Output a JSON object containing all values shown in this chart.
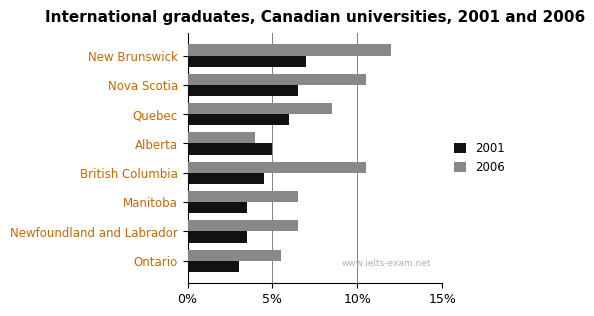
{
  "title": "International graduates, Canadian universities, 2001 and 2006",
  "categories": [
    "New Brunswick",
    "Nova Scotia",
    "Quebec",
    "Alberta",
    "British Columbia",
    "Manitoba",
    "Newfoundland and Labrador",
    "Ontario"
  ],
  "values_2001": [
    7.0,
    6.5,
    6.0,
    5.0,
    4.5,
    3.5,
    3.5,
    3.0
  ],
  "values_2006": [
    12.0,
    10.5,
    8.5,
    4.0,
    10.5,
    6.5,
    6.5,
    5.5
  ],
  "color_2001": "#111111",
  "color_2006": "#888888",
  "label_2001": "2001",
  "label_2006": "2006",
  "xlim": [
    0,
    15
  ],
  "xticks": [
    0,
    5,
    10,
    15
  ],
  "xticklabels": [
    "0%",
    "5%",
    "10%",
    "15%"
  ],
  "ylabel_color": "#cc6600",
  "watermark": "www.ielts-exam.net",
  "title_fontsize": 11,
  "label_fontsize": 8.5,
  "tick_fontsize": 9
}
